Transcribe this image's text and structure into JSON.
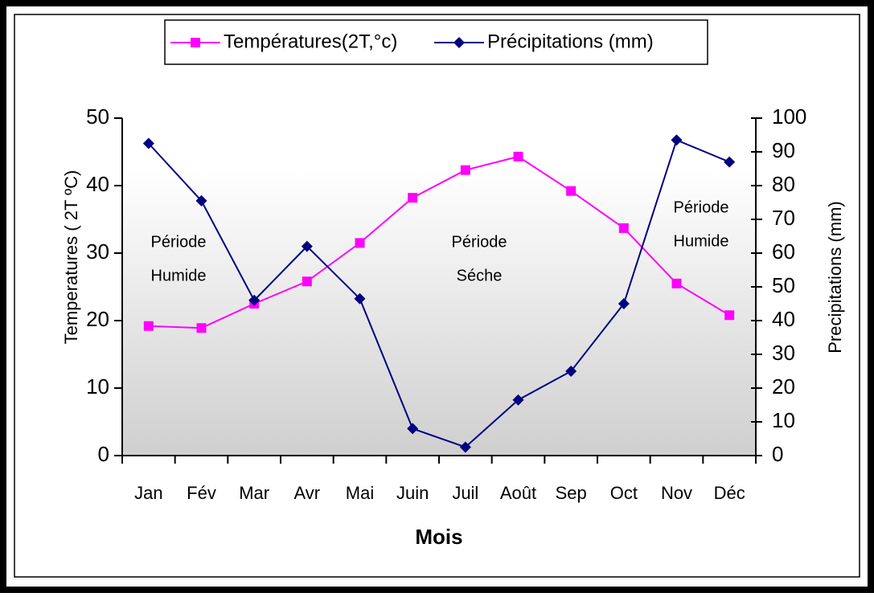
{
  "chart_data": {
    "type": "line",
    "categories": [
      "Jan",
      "Fév",
      "Mar",
      "Avr",
      "Mai",
      "Juin",
      "Juil",
      "Août",
      "Sep",
      "Oct",
      "Nov",
      "Déc"
    ],
    "series": [
      {
        "name": "Températures(2T,°c)",
        "color": "#ff00ff",
        "marker": "square",
        "values": [
          19.2,
          18.9,
          22.5,
          25.8,
          31.5,
          38.2,
          42.3,
          44.3,
          39.2,
          33.7,
          25.5,
          20.8
        ]
      },
      {
        "name": "Précipitations (mm)",
        "color": "#000080",
        "marker": "diamond",
        "axis": "y2",
        "values": [
          92.5,
          75.5,
          46,
          62,
          46.5,
          8,
          2.5,
          16.5,
          25,
          45,
          93.5,
          87
        ]
      }
    ],
    "ylabel": "Temperatures ( 2T ºC)",
    "y2label": "Precipitations (mm)",
    "xlabel": "Mois",
    "ylim": [
      0,
      50
    ],
    "yticks": [
      0,
      10,
      20,
      30,
      40,
      50
    ],
    "y2lim": [
      0,
      100
    ],
    "y2ticks": [
      0,
      10,
      20,
      30,
      40,
      50,
      60,
      70,
      80,
      90,
      100
    ],
    "annotations": [
      {
        "lines": [
          "Période",
          "Humide"
        ]
      },
      {
        "lines": [
          "Période",
          "Séche"
        ]
      },
      {
        "lines": [
          "Période",
          "Humide"
        ]
      }
    ],
    "legend": "top"
  }
}
